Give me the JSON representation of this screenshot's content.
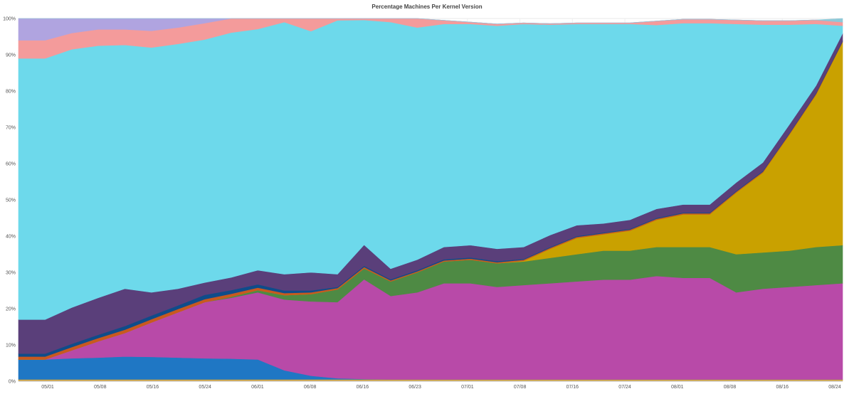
{
  "chart_data": {
    "type": "area",
    "stacked": true,
    "title": "Percentage Machines Per Kernel Version",
    "xlabel": "",
    "ylabel": "",
    "ylim": [
      0,
      100
    ],
    "grid": true,
    "legend": "none",
    "x_tick_labels": [
      "05/01",
      "05/08",
      "05/16",
      "05/24",
      "06/01",
      "06/08",
      "06/16",
      "06/23",
      "07/01",
      "07/08",
      "07/16",
      "07/24",
      "08/01",
      "08/08",
      "08/16",
      "08/24"
    ],
    "y_tick_labels": [
      "0%",
      "10%",
      "20%",
      "30%",
      "40%",
      "50%",
      "60%",
      "70%",
      "80%",
      "90%",
      "100%"
    ],
    "x_index": [
      0,
      4,
      8,
      12,
      16,
      20,
      24,
      28,
      32,
      36,
      40,
      44,
      48,
      52,
      56,
      60,
      64,
      68,
      72,
      76,
      80,
      84,
      88,
      92,
      96,
      100,
      104,
      108,
      112,
      116,
      120,
      124
    ],
    "series": [
      {
        "color": "#d4a53c",
        "values": [
          0.5,
          0.5,
          0.5,
          0.5,
          0.5,
          0.5,
          0.5,
          0.5,
          0.5,
          0.5,
          0.5,
          0.5,
          0.5,
          0.5,
          0.5,
          0.5,
          0.5,
          0.5,
          0.5,
          0.5,
          0.5,
          0.5,
          0.5,
          0.5,
          0.5,
          0.5,
          0.5,
          0.5,
          0.5,
          0.5,
          0.5,
          0.5
        ]
      },
      {
        "color": "#1f77c4",
        "values": [
          5.5,
          5.5,
          5.8,
          6.0,
          6.3,
          6.2,
          6.0,
          5.8,
          5.7,
          5.5,
          2.5,
          1.0,
          0.3,
          0.1,
          0,
          0,
          0,
          0,
          0,
          0,
          0,
          0,
          0,
          0,
          0,
          0,
          0,
          0,
          0,
          0,
          0,
          0
        ]
      },
      {
        "color": "#b84aa8",
        "values": [
          0,
          0,
          2.2,
          4.5,
          6.5,
          9.5,
          12.5,
          15.5,
          16.8,
          18.5,
          19.5,
          20.5,
          21.0,
          27.5,
          23.0,
          24.0,
          26.5,
          26.5,
          25.5,
          26.0,
          26.5,
          27.0,
          27.5,
          27.5,
          28.5,
          28.0,
          28.0,
          24.0,
          25.0,
          25.5,
          26.0,
          26.5
        ]
      },
      {
        "color": "#4e8a44",
        "values": [
          0,
          0,
          0,
          0,
          0,
          0,
          0,
          0,
          0.3,
          0.6,
          1.2,
          2.0,
          3.5,
          3.0,
          4.0,
          5.5,
          6.0,
          6.5,
          6.5,
          6.5,
          7.0,
          7.5,
          8.0,
          8.0,
          8.0,
          8.5,
          8.5,
          10.5,
          10.0,
          10.0,
          10.5,
          10.5
        ]
      },
      {
        "color": "#c9a100",
        "values": [
          0,
          0,
          0,
          0,
          0,
          0,
          0,
          0,
          0,
          0,
          0,
          0,
          0,
          0,
          0,
          0,
          0,
          0,
          0,
          0.2,
          2.5,
          4.5,
          4.5,
          5.5,
          7.5,
          9.0,
          9.0,
          17.0,
          22.0,
          32.0,
          42.0,
          56.0
        ]
      },
      {
        "color": "#c8591f",
        "values": [
          0.8,
          0.8,
          0.9,
          0.9,
          0.9,
          0.9,
          0.9,
          0.8,
          0.8,
          0.7,
          0.6,
          0.5,
          0.4,
          0.4,
          0.3,
          0.3,
          0.3,
          0.3,
          0.3,
          0.3,
          0.3,
          0.3,
          0.3,
          0.3,
          0.3,
          0.3,
          0.3,
          0.3,
          0.3,
          0.3,
          0.3,
          0.2
        ]
      },
      {
        "color": "#0f4c8a",
        "values": [
          0.8,
          0.8,
          0.9,
          0.9,
          1.0,
          1.0,
          1.0,
          1.2,
          1.0,
          0.9,
          0.7,
          0.5,
          0.3,
          0.3,
          0.3,
          0.3,
          0.3,
          0.3,
          0.3,
          0.2,
          0.2,
          0.2,
          0.2,
          0.2,
          0.2,
          0.2,
          0.2,
          0.2,
          0.2,
          0.2,
          0.2,
          0.2
        ]
      },
      {
        "color": "#5a3f7a",
        "values": [
          9.4,
          9.4,
          10.0,
          10.2,
          10.3,
          6.4,
          4.6,
          3.4,
          3.5,
          3.9,
          4.5,
          5.0,
          3.5,
          5.8,
          2.9,
          2.9,
          3.4,
          3.4,
          3.4,
          3.3,
          3.3,
          3.0,
          2.5,
          2.5,
          2.5,
          2.2,
          2.2,
          2.3,
          2.3,
          2.3,
          2.0,
          2.0
        ]
      },
      {
        "color": "#6dd9eb",
        "values": [
          72.0,
          72.0,
          71.2,
          69.5,
          67.2,
          67.5,
          67.5,
          67.0,
          67.5,
          66.5,
          69.5,
          66.5,
          70.0,
          62.0,
          68.0,
          64.0,
          61.5,
          61.0,
          61.5,
          61.5,
          58.0,
          55.5,
          55.0,
          54.0,
          50.7,
          50.0,
          50.0,
          43.7,
          38.0,
          27.5,
          17.0,
          2.1
        ]
      },
      {
        "color": "#f49b9b",
        "values": [
          5.0,
          5.0,
          4.5,
          4.5,
          4.3,
          4.6,
          4.5,
          4.5,
          4.5,
          4.5,
          4.5,
          4.0,
          4.0,
          4.0,
          4.0,
          3.5,
          1.0,
          0.5,
          0.5,
          0.3,
          0.3,
          0.3,
          0.3,
          0.3,
          1.1,
          1.1,
          1.1,
          1.1,
          1.1,
          1.1,
          1.1,
          1.0
        ]
      },
      {
        "color": "#b0a4e0",
        "values": [
          6.0,
          6.0,
          5.0,
          5.0,
          3.0,
          3.4,
          2.5,
          1.3,
          1.4,
          1.1,
          0,
          0,
          0,
          0,
          0,
          0,
          0,
          0,
          0,
          0,
          0,
          0,
          0,
          0,
          0,
          0,
          0,
          0,
          0,
          0,
          0,
          0
        ]
      },
      {
        "color": "#8ec9d8",
        "values": [
          0,
          0,
          0,
          0,
          0,
          0,
          0,
          0,
          0,
          0,
          0,
          0,
          0,
          0,
          0,
          0,
          0,
          0,
          0,
          0,
          0,
          0,
          0,
          0,
          0,
          0,
          0,
          0,
          0,
          0,
          0,
          2.0
        ]
      }
    ]
  }
}
